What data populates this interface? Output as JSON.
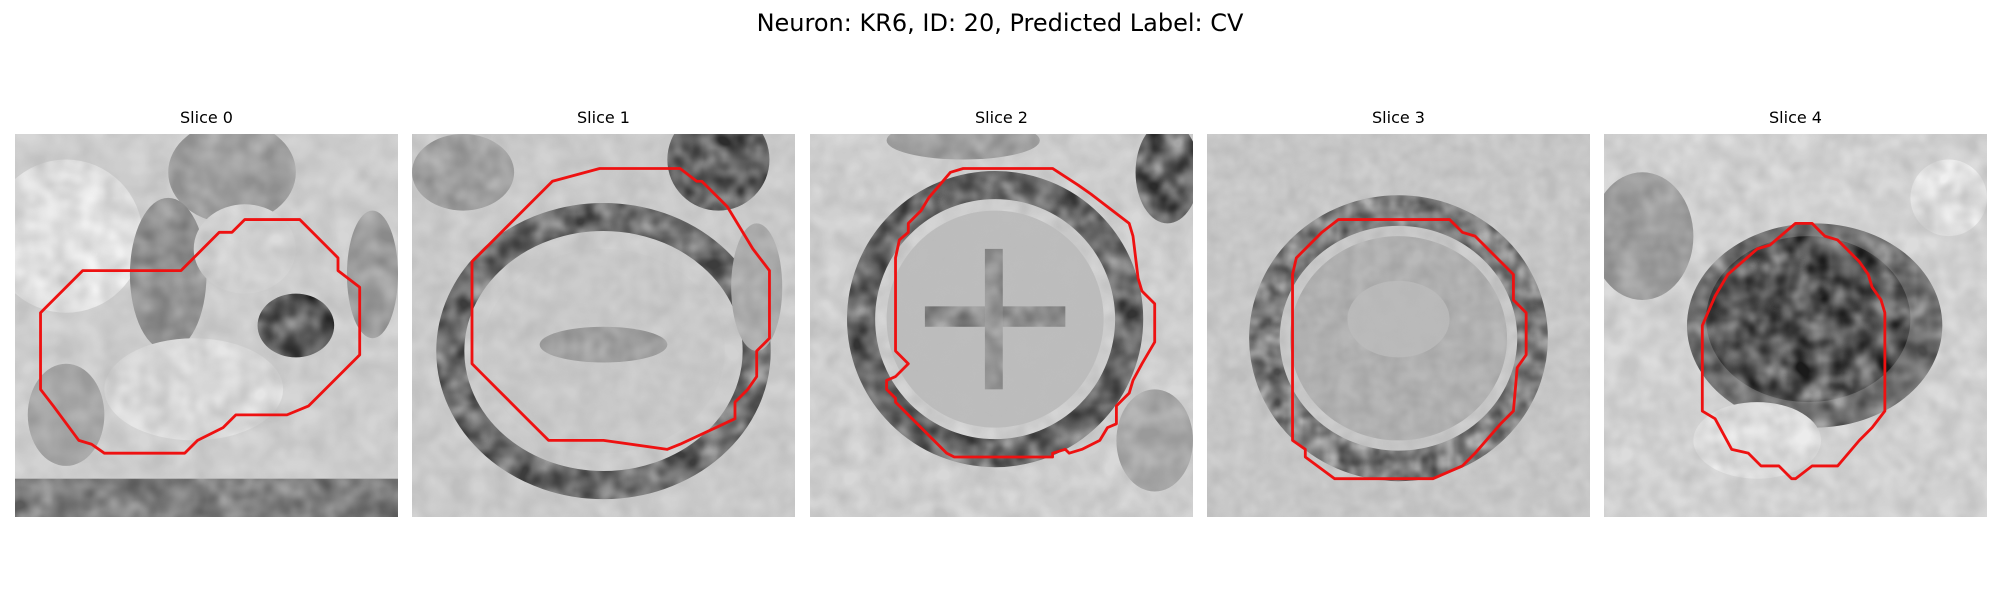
{
  "figure": {
    "title": "Neuron: KR6, ID: 20, Predicted Label: CV"
  },
  "panels": [
    {
      "title": "Slice 0"
    },
    {
      "title": "Slice 1"
    },
    {
      "title": "Slice 2"
    },
    {
      "title": "Slice 3"
    },
    {
      "title": "Slice 4"
    }
  ],
  "colors": {
    "outline": "#ee1111",
    "background": "#ffffff"
  }
}
